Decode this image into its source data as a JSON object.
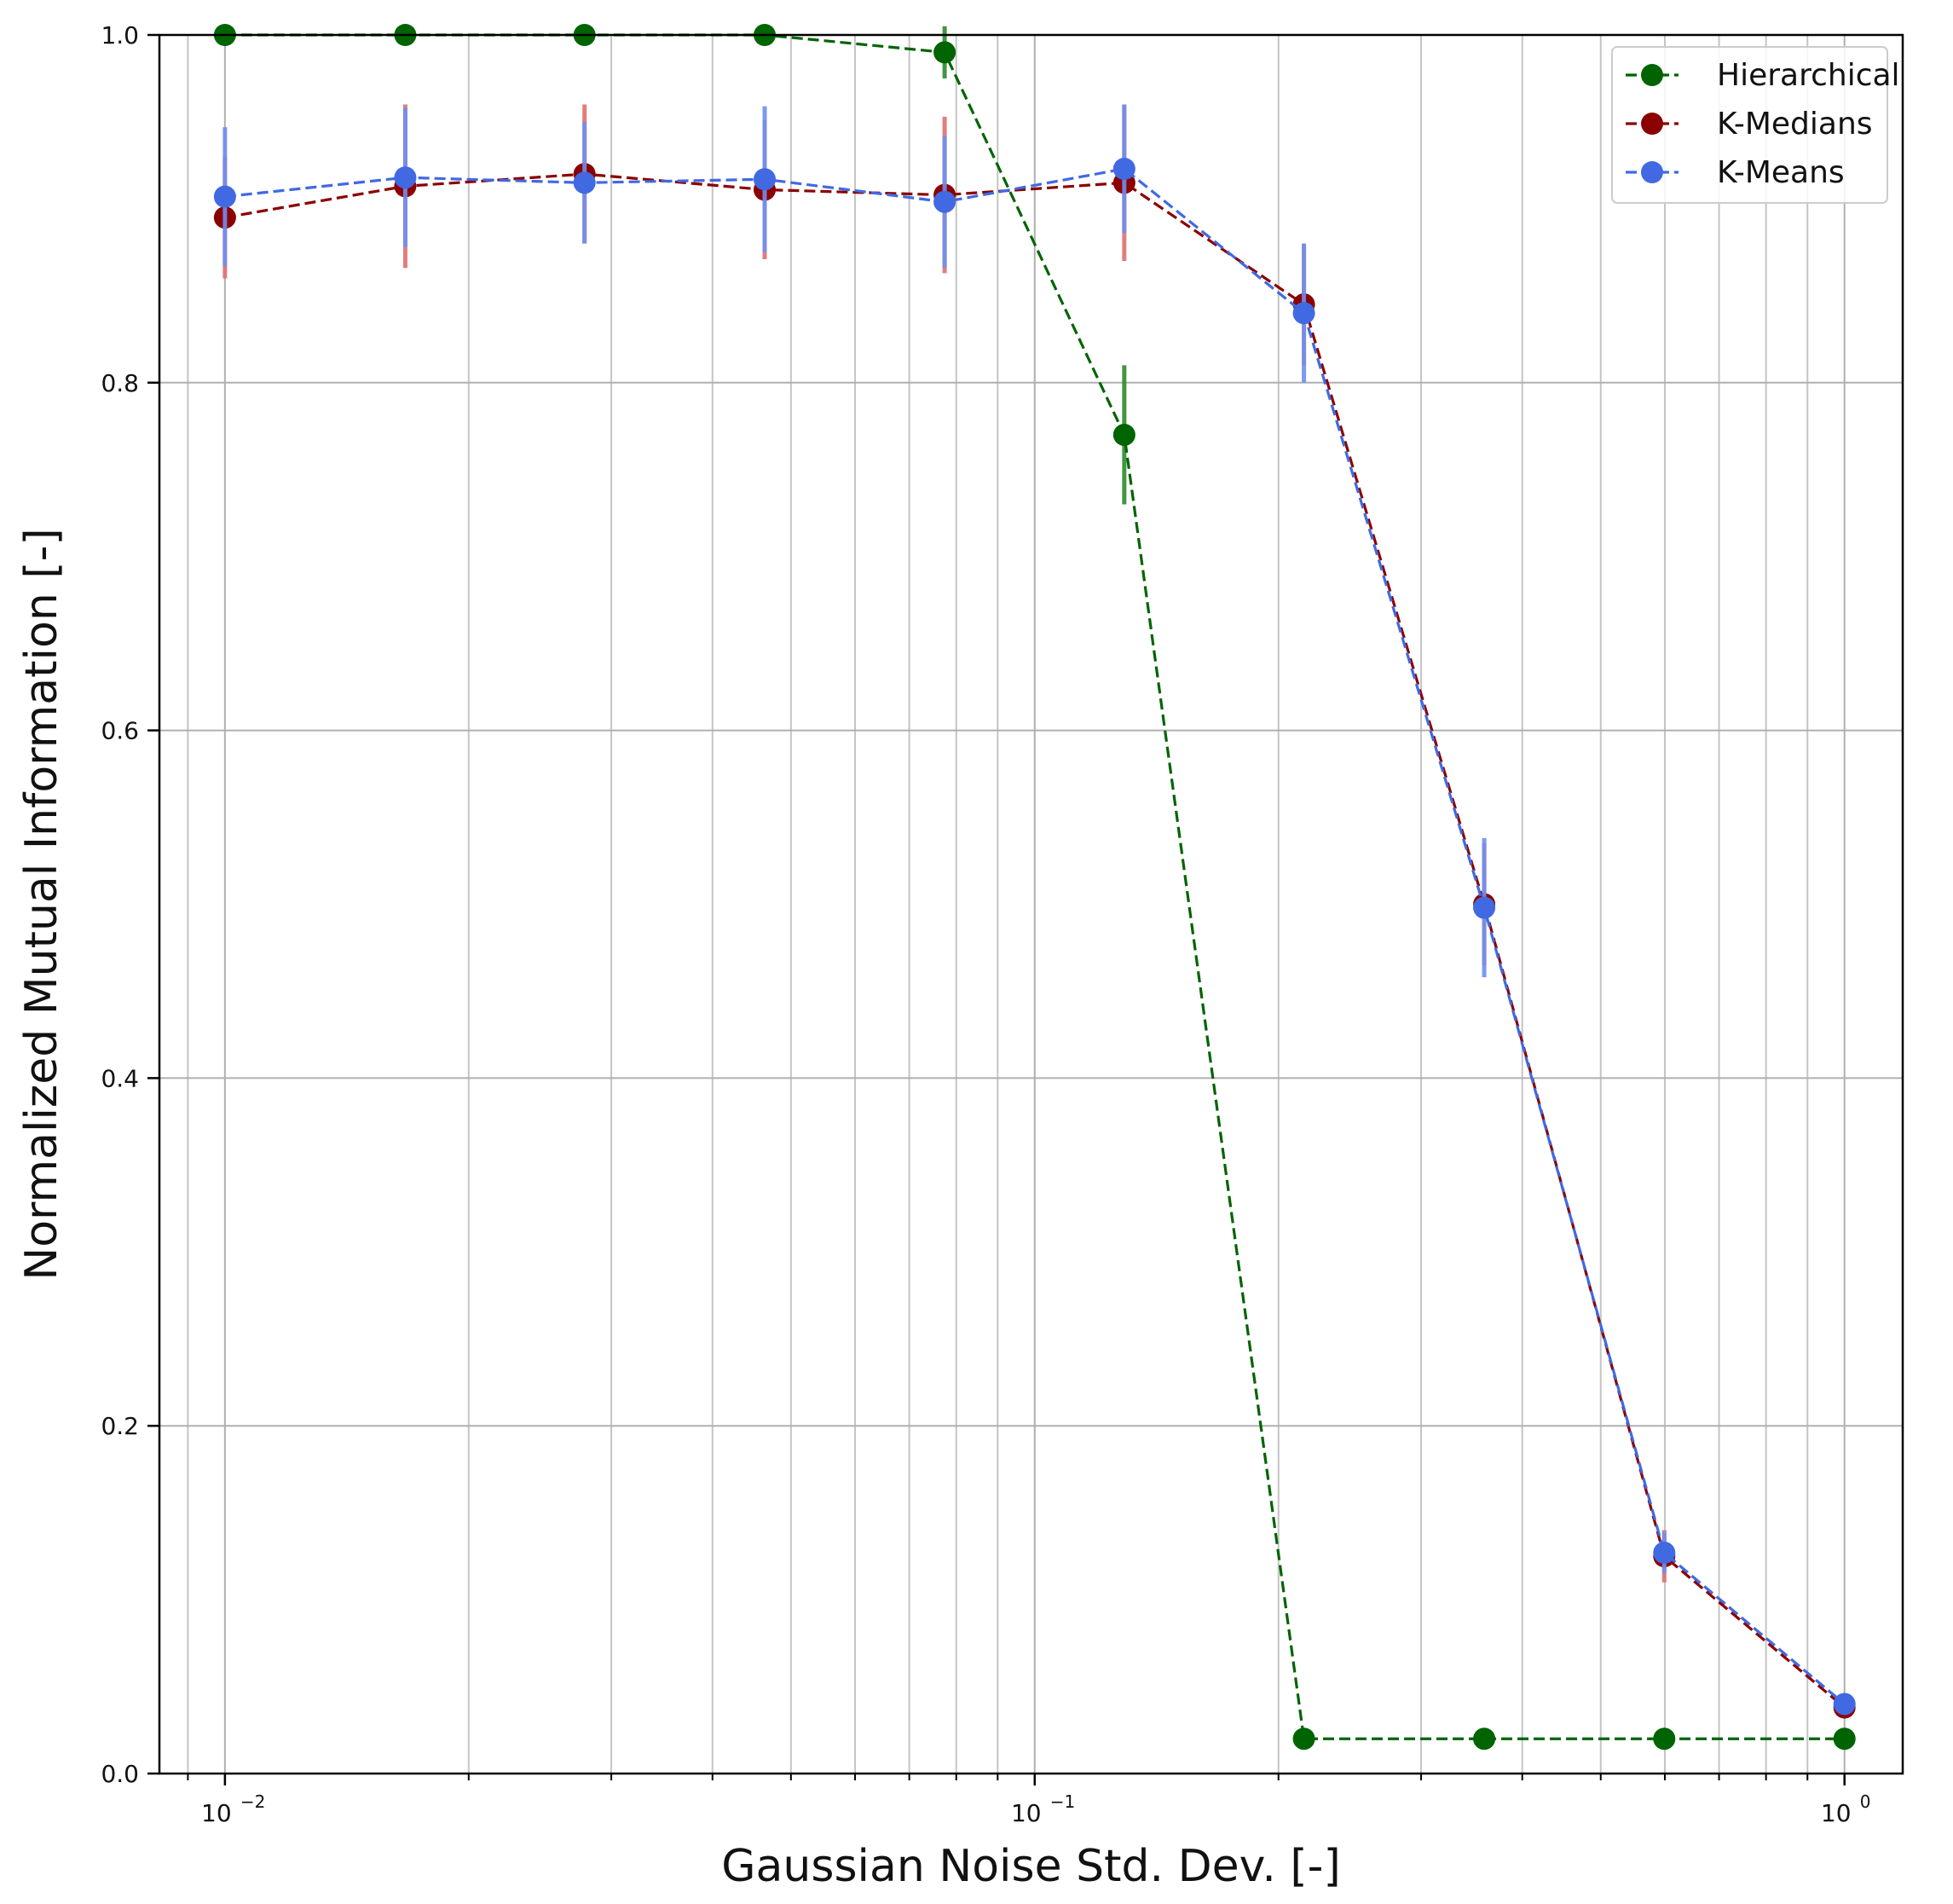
{
  "chart_data": {
    "type": "line",
    "xlabel": "Gaussian Noise Std. Dev. [-]",
    "ylabel": "Normalized Mutual Information [-]",
    "xscale": "log",
    "xlim": [
      0.0083,
      1.18
    ],
    "ylim": [
      0.0,
      1.0
    ],
    "grid": true,
    "grid_minor_x": true,
    "legend_position": "top-right",
    "x_ticks": [
      {
        "value": 0.01,
        "base": "10",
        "exp": "−2"
      },
      {
        "value": 0.1,
        "base": "10",
        "exp": "−1"
      },
      {
        "value": 1.0,
        "base": "10",
        "exp": "0"
      }
    ],
    "y_ticks": [
      {
        "value": 0.0,
        "label": "0.0"
      },
      {
        "value": 0.2,
        "label": "0.2"
      },
      {
        "value": 0.4,
        "label": "0.4"
      },
      {
        "value": 0.6,
        "label": "0.6"
      },
      {
        "value": 0.8,
        "label": "0.8"
      },
      {
        "value": 1.0,
        "label": "1.0"
      }
    ],
    "x": [
      0.01,
      0.0167,
      0.0278,
      0.0464,
      0.0774,
      0.129,
      0.215,
      0.359,
      0.599,
      1.0
    ],
    "series": [
      {
        "name": "Hierarchical",
        "color": "#006400",
        "err_color": "#2e8b2e",
        "linestyle": "dashed",
        "marker": "circle",
        "values": [
          1.0,
          1.0,
          1.0,
          1.0,
          0.99,
          0.77,
          0.02,
          0.02,
          0.02,
          0.02
        ],
        "errors": [
          0.0,
          0.0,
          0.0,
          0.0,
          0.015,
          0.04,
          0.0,
          0.0,
          0.0,
          0.0
        ]
      },
      {
        "name": "K-Medians",
        "color": "#8b0000",
        "err_color": "#e07070",
        "linestyle": "dashed",
        "marker": "circle",
        "values": [
          0.895,
          0.913,
          0.92,
          0.911,
          0.908,
          0.915,
          0.845,
          0.5,
          0.125,
          0.038
        ],
        "errors": [
          0.035,
          0.047,
          0.04,
          0.04,
          0.045,
          0.045,
          0.035,
          0.035,
          0.015,
          0.005
        ]
      },
      {
        "name": "K-Means",
        "color": "#4169e1",
        "err_color": "#6f8ff0",
        "linestyle": "dashed",
        "marker": "circle",
        "values": [
          0.907,
          0.918,
          0.915,
          0.917,
          0.904,
          0.923,
          0.84,
          0.498,
          0.127,
          0.04
        ],
        "errors": [
          0.04,
          0.04,
          0.035,
          0.042,
          0.038,
          0.037,
          0.04,
          0.04,
          0.012,
          0.005
        ]
      }
    ]
  }
}
